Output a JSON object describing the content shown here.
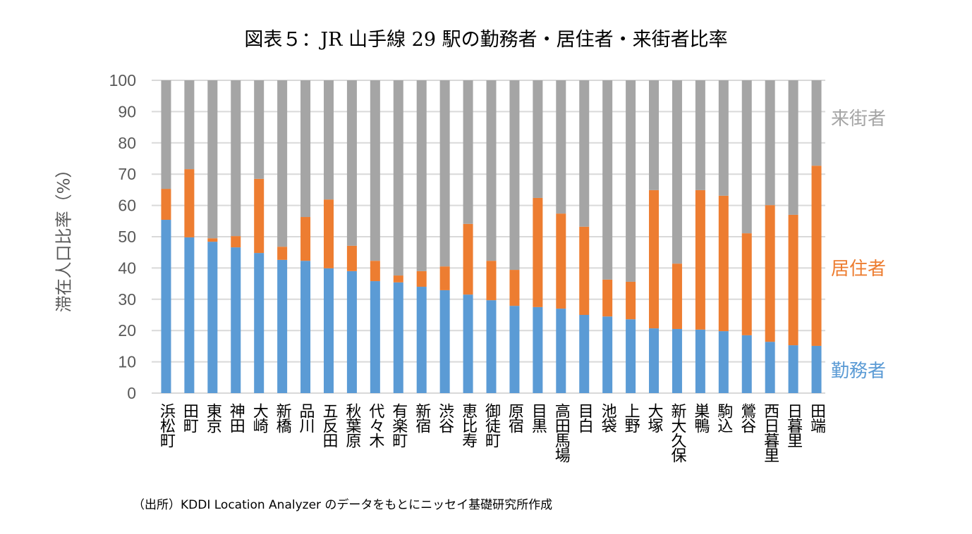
{
  "chart_data": {
    "type": "bar",
    "stacked": true,
    "title": "図表５：JR 山手線 29 駅の勤務者・居住者・来街者比率",
    "ylabel": "滞在人口比率（%）",
    "xlabel": "",
    "ylim": [
      0,
      100
    ],
    "yticks": [
      0,
      10,
      20,
      30,
      40,
      50,
      60,
      70,
      80,
      90,
      100
    ],
    "grid": true,
    "legend_placement": "right (labels beside bars)",
    "categories": [
      "浜松町",
      "田町",
      "東京",
      "神田",
      "大崎",
      "新橋",
      "品川",
      "五反田",
      "秋葉原",
      "代々木",
      "有楽町",
      "新宿",
      "渋谷",
      "恵比寿",
      "御徒町",
      "原宿",
      "目黒",
      "高田馬場",
      "目白",
      "池袋",
      "上野",
      "大塚",
      "新大久保",
      "巣鴨",
      "駒込",
      "鶯谷",
      "西日暮里",
      "日暮里",
      "田端"
    ],
    "series": [
      {
        "name": "勤務者",
        "color": "#5B9BD5",
        "values": [
          55.4,
          49.8,
          48.4,
          46.6,
          44.8,
          42.6,
          42.3,
          39.9,
          39.0,
          35.8,
          35.4,
          34.0,
          32.9,
          31.5,
          29.7,
          27.9,
          27.5,
          27.0,
          25.0,
          24.5,
          23.6,
          20.7,
          20.5,
          20.3,
          19.8,
          18.5,
          16.4,
          15.3,
          15.1
        ]
      },
      {
        "name": "居住者",
        "color": "#ED7D31",
        "values": [
          9.9,
          21.8,
          1.1,
          3.6,
          23.7,
          4.2,
          14.0,
          22.0,
          8.1,
          6.5,
          2.2,
          5.0,
          7.6,
          22.6,
          12.6,
          11.5,
          34.9,
          30.4,
          28.2,
          11.8,
          12.0,
          44.2,
          20.9,
          44.6,
          43.3,
          32.6,
          43.7,
          41.7,
          57.6
        ]
      },
      {
        "name": "来街者",
        "color": "#A5A5A5",
        "values": [
          34.7,
          28.4,
          50.5,
          49.8,
          31.5,
          53.2,
          43.7,
          38.1,
          52.9,
          57.7,
          62.4,
          61.0,
          59.5,
          45.9,
          57.7,
          60.6,
          37.6,
          42.6,
          46.8,
          63.7,
          64.4,
          35.1,
          58.6,
          35.1,
          36.9,
          48.9,
          39.9,
          43.0,
          27.3
        ]
      }
    ],
    "source_note": "（出所）KDDI Location Analyzer のデータをもとにニッセイ基礎研究所作成"
  }
}
